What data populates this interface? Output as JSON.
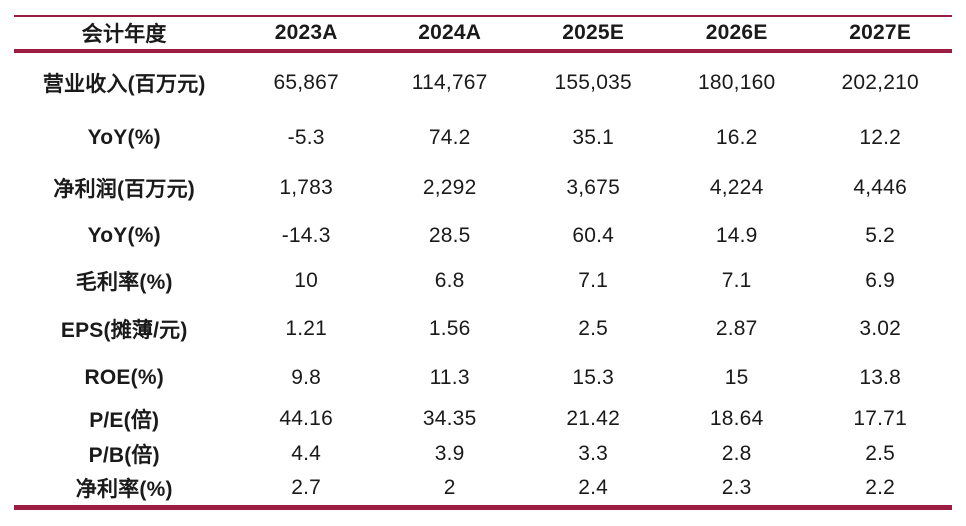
{
  "colors": {
    "rule": "#9D1C42",
    "text": "#1A1A1A",
    "background": "#FFFFFF"
  },
  "chart_data": {
    "type": "table",
    "title": "",
    "header": {
      "label": "会计年度",
      "years": [
        "2023A",
        "2024A",
        "2025E",
        "2026E",
        "2027E"
      ]
    },
    "rows": [
      {
        "label": "营业收入(百万元)",
        "values": [
          "65,867",
          "114,767",
          "155,035",
          "180,160",
          "202,210"
        ]
      },
      {
        "label": "YoY(%)",
        "values": [
          "-5.3",
          "74.2",
          "35.1",
          "16.2",
          "12.2"
        ]
      },
      {
        "label": "净利润(百万元)",
        "values": [
          "1,783",
          "2,292",
          "3,675",
          "4,224",
          "4,446"
        ]
      },
      {
        "label": "YoY(%)",
        "values": [
          "-14.3",
          "28.5",
          "60.4",
          "14.9",
          "5.2"
        ]
      },
      {
        "label": "毛利率(%)",
        "values": [
          "10",
          "6.8",
          "7.1",
          "7.1",
          "6.9"
        ]
      },
      {
        "label": "EPS(摊薄/元)",
        "values": [
          "1.21",
          "1.56",
          "2.5",
          "2.87",
          "3.02"
        ]
      },
      {
        "label": "ROE(%)",
        "values": [
          "9.8",
          "11.3",
          "15.3",
          "15",
          "13.8"
        ]
      },
      {
        "label": "P/E(倍)",
        "values": [
          "44.16",
          "34.35",
          "21.42",
          "18.64",
          "17.71"
        ]
      },
      {
        "label": "P/B(倍)",
        "values": [
          "4.4",
          "3.9",
          "3.3",
          "2.8",
          "2.5"
        ]
      },
      {
        "label": "净利率(%)",
        "values": [
          "2.7",
          "2",
          "2.4",
          "2.3",
          "2.2"
        ]
      }
    ]
  }
}
